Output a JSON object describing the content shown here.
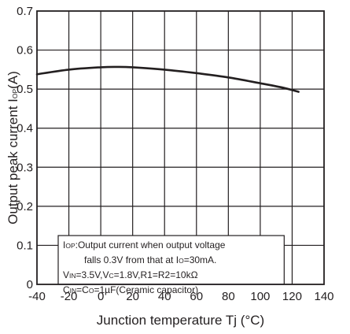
{
  "chart_data": {
    "type": "line",
    "xlabel": "Junction temperature Tj (°C)",
    "ylabel": {
      "main": "Output peak current I",
      "sub": "OP",
      "unit": "(A)"
    },
    "xlim": [
      -40,
      140
    ],
    "ylim": [
      0,
      0.7
    ],
    "x_ticks": [
      -40,
      -20,
      0,
      20,
      40,
      60,
      80,
      100,
      120,
      140
    ],
    "y_ticks": [
      0,
      0.1,
      0.2,
      0.3,
      0.4,
      0.5,
      0.6,
      0.7
    ],
    "x_tick_labels": [
      "-40",
      "-20",
      "0",
      "20",
      "40",
      "60",
      "80",
      "100",
      "120",
      "140"
    ],
    "y_tick_labels": [
      "0",
      "0.1",
      "0.2",
      "0.3",
      "0.4",
      "0.5",
      "0.6",
      "0.7"
    ],
    "grid": true,
    "legend": "none",
    "series": [
      {
        "x": [
          -40,
          -20,
          0,
          10,
          20,
          40,
          60,
          80,
          100,
          115,
          124
        ],
        "y": [
          0.538,
          0.55,
          0.556,
          0.557,
          0.556,
          0.55,
          0.541,
          0.53,
          0.515,
          0.503,
          0.493
        ]
      }
    ],
    "annotation": {
      "lines": [
        [
          {
            "t": "I"
          },
          {
            "t": "OP",
            "sub": true
          },
          {
            "t": ":Output current when output voltage"
          }
        ],
        [
          {
            "t": "falls 0.3V from that at I"
          },
          {
            "t": "O",
            "sub": true
          },
          {
            "t": "=30mA."
          }
        ],
        [
          {
            "t": "V"
          },
          {
            "t": "IN",
            "sub": true
          },
          {
            "t": "=3.5V,V"
          },
          {
            "t": "C",
            "sub": true
          },
          {
            "t": "=1.8V,R1=R2=10kΩ"
          }
        ],
        [
          {
            "t": "C"
          },
          {
            "t": "IN",
            "sub": true
          },
          {
            "t": "=C"
          },
          {
            "t": "O",
            "sub": true
          },
          {
            "t": "=1µF(Ceramic capacitor)"
          }
        ]
      ]
    },
    "colors": {
      "line": "#231f20",
      "grid": "#231f20",
      "background": "#ffffff"
    }
  }
}
